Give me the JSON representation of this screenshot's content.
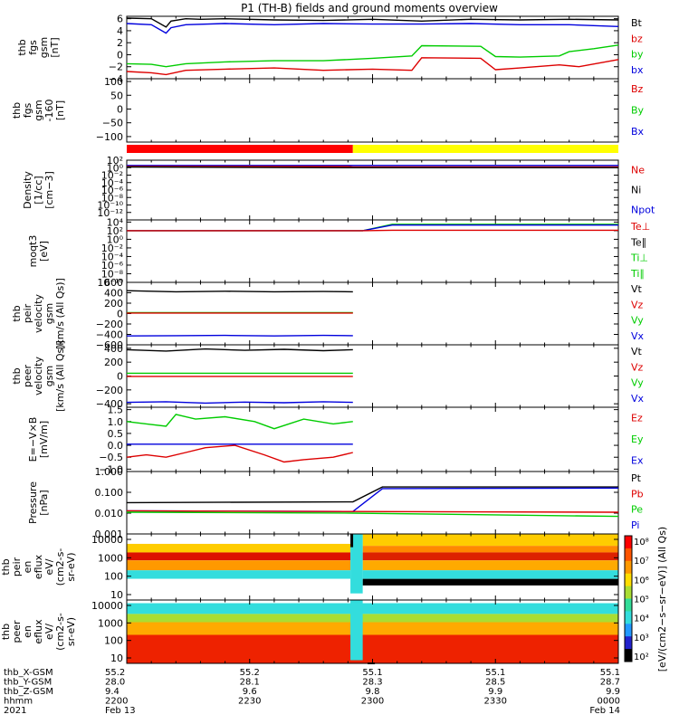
{
  "chart_data": {
    "type": "line",
    "title": "P1 (TH-B) fields and ground moments overview",
    "panels": [
      {
        "id": "fgs",
        "ylabel": [
          "thb",
          "fgs",
          "gsm",
          "[nT]"
        ],
        "ticks": [
          "6",
          "4",
          "2",
          "0",
          "−2",
          "−4"
        ],
        "tick_values": [
          6,
          4,
          2,
          0,
          -2,
          -4
        ],
        "ylim": [
          -4,
          6.4
        ],
        "legend": [
          {
            "name": "Bt",
            "color": "#000000"
          },
          {
            "name": "bz",
            "color": "#dd0000"
          },
          {
            "name": "by",
            "color": "#00cc00"
          },
          {
            "name": "bx",
            "color": "#0000dd"
          }
        ],
        "series": [
          {
            "name": "Bt",
            "color": "#000000",
            "x": [
              0,
              5,
              8,
              9,
              12,
              15,
              20,
              30,
              40,
              50,
              60,
              70,
              80,
              90,
              100
            ],
            "y": [
              6.1,
              6.0,
              4.6,
              5.6,
              6.0,
              5.9,
              6.0,
              5.8,
              5.7,
              5.9,
              5.6,
              5.9,
              5.8,
              5.9,
              5.8
            ]
          },
          {
            "name": "bx",
            "color": "#0000dd",
            "x": [
              0,
              5,
              8,
              9,
              12,
              20,
              30,
              40,
              50,
              60,
              70,
              80,
              90,
              100
            ],
            "y": [
              5.2,
              5.0,
              3.6,
              4.5,
              5.0,
              5.2,
              5.0,
              5.2,
              5.1,
              5.1,
              5.2,
              5.0,
              5.0,
              4.7
            ]
          },
          {
            "name": "by",
            "color": "#00cc00",
            "x": [
              0,
              5,
              8,
              12,
              20,
              30,
              40,
              50,
              58,
              60,
              72,
              75,
              80,
              88,
              90,
              95,
              100
            ],
            "y": [
              -1.5,
              -1.6,
              -2.0,
              -1.5,
              -1.2,
              -1.0,
              -1.0,
              -0.6,
              -0.2,
              1.5,
              1.4,
              -0.3,
              -0.4,
              -0.2,
              0.5,
              1.0,
              1.6
            ]
          },
          {
            "name": "bz",
            "color": "#dd0000",
            "x": [
              0,
              5,
              8,
              12,
              20,
              30,
              40,
              50,
              58,
              60,
              72,
              75,
              80,
              88,
              92,
              100
            ],
            "y": [
              -2.8,
              -3.0,
              -3.3,
              -2.6,
              -2.4,
              -2.2,
              -2.6,
              -2.4,
              -2.6,
              -0.5,
              -0.6,
              -2.5,
              -2.2,
              -1.7,
              -2.0,
              -0.8
            ]
          }
        ]
      },
      {
        "id": "fgs-nominal",
        "ylabel": [
          "thb",
          "fgs",
          "gsm",
          "-160",
          "[nT]"
        ],
        "ticks": [
          "100",
          "50",
          "0",
          "−50",
          "−100"
        ],
        "tick_values": [
          100,
          50,
          0,
          -50,
          -100
        ],
        "ylim": [
          -120,
          110
        ],
        "legend": [
          {
            "name": "Bz",
            "color": "#dd0000"
          },
          {
            "name": "By",
            "color": "#00cc00"
          },
          {
            "name": "Bx",
            "color": "#0000dd"
          }
        ],
        "series": []
      },
      {
        "id": "mode-bar",
        "segments": [
          {
            "from": 0,
            "to": 46,
            "color": "#ff0000"
          },
          {
            "from": 46,
            "to": 100,
            "color": "#ffff00"
          }
        ]
      },
      {
        "id": "density",
        "ylabel": [
          "Density",
          "[1/cc]",
          "[cm−3]"
        ],
        "ticks": [
          "10²",
          "10⁰",
          "10⁻²",
          "10⁻⁴",
          "10⁻⁶",
          "10⁻⁸",
          "10⁻¹⁰",
          "10⁻¹²"
        ],
        "tick_exp": [
          2,
          0,
          -2,
          -4,
          -6,
          -8,
          -10,
          -12
        ],
        "ylim_exp": [
          -14,
          2
        ],
        "legend": [
          {
            "name": "Ne",
            "color": "#dd0000"
          },
          {
            "name": "Ni",
            "color": "#000000"
          },
          {
            "name": "Npot",
            "color": "#0000dd"
          }
        ],
        "series": [
          {
            "name": "Npot",
            "color": "#0000dd",
            "x": [
              0,
              100
            ],
            "y": [
              0.6,
              0.6
            ]
          },
          {
            "name": "Ne",
            "color": "#dd0000",
            "x": [
              0,
              45,
              46,
              100
            ],
            "y": [
              0.3,
              0.3,
              0.2,
              0.2
            ]
          },
          {
            "name": "Ni",
            "color": "#000000",
            "x": [
              0,
              46,
              100
            ],
            "y": [
              0.15,
              0.0,
              0.0
            ]
          }
        ]
      },
      {
        "id": "temperature",
        "ylabel": [
          "moqt3",
          "[eV]"
        ],
        "ticks": [
          "10⁴",
          "10²",
          "10⁰",
          "10⁻²",
          "10⁻⁴",
          "10⁻⁶",
          "10⁻⁸",
          "10⁻¹⁰"
        ],
        "tick_exp": [
          4,
          2,
          0,
          -2,
          -4,
          -6,
          -8,
          -10
        ],
        "ylim_exp": [
          -10,
          4.5
        ],
        "legend": [
          {
            "name": "Te⊥",
            "color": "#dd0000"
          },
          {
            "name": "Te∥",
            "color": "#000000"
          },
          {
            "name": "Ti⊥",
            "color": "#00cc00"
          },
          {
            "name": "Ti∥",
            "color": "#00cc00"
          }
        ],
        "series": [
          {
            "name": "Ti∥",
            "color": "#00cc00",
            "x": [
              0,
              48,
              54,
              100
            ],
            "y": [
              2.0,
              2.0,
              3.5,
              3.5
            ]
          },
          {
            "name": "Te∥",
            "color": "#0000dd",
            "x": [
              0,
              48,
              54,
              100
            ],
            "y": [
              2.0,
              2.0,
              3.3,
              3.3
            ]
          },
          {
            "name": "Te⊥",
            "color": "#dd0000",
            "x": [
              0,
              48,
              54,
              100
            ],
            "y": [
              2.0,
              2.0,
              2.1,
              2.1
            ]
          }
        ]
      },
      {
        "id": "peir-velocity",
        "ylabel": [
          "thb",
          "peir",
          "velocity",
          "gsm",
          "[km/s (All Qs)]"
        ],
        "ticks": [
          "600",
          "400",
          "200",
          "0",
          "−200",
          "−400",
          "−600"
        ],
        "tick_values": [
          600,
          400,
          200,
          0,
          -200,
          -400,
          -600
        ],
        "ylim": [
          -600,
          600
        ],
        "legend": [
          {
            "name": "Vt",
            "color": "#000000"
          },
          {
            "name": "Vz",
            "color": "#dd0000"
          },
          {
            "name": "Vy",
            "color": "#00cc00"
          },
          {
            "name": "Vx",
            "color": "#0000dd"
          }
        ],
        "series": [
          {
            "name": "Vt",
            "color": "#000000",
            "x": [
              0,
              10,
              20,
              30,
              40,
              46
            ],
            "y": [
              440,
              420,
              430,
              420,
              425,
              420
            ]
          },
          {
            "name": "Vy",
            "color": "#00cc00",
            "x": [
              0,
              46
            ],
            "y": [
              20,
              20
            ]
          },
          {
            "name": "Vz",
            "color": "#dd0000",
            "x": [
              0,
              46
            ],
            "y": [
              10,
              10
            ]
          },
          {
            "name": "Vx",
            "color": "#0000dd",
            "x": [
              0,
              10,
              20,
              30,
              40,
              46
            ],
            "y": [
              -430,
              -425,
              -420,
              -430,
              -420,
              -425
            ]
          }
        ]
      },
      {
        "id": "peer-velocity",
        "ylabel": [
          "thb",
          "peer",
          "velocity",
          "gsm",
          "[km/s (All Qs)]"
        ],
        "ticks": [
          "400",
          "200",
          "0",
          "−200",
          "−400"
        ],
        "tick_values": [
          400,
          200,
          0,
          -200,
          -400
        ],
        "ylim": [
          -450,
          450
        ],
        "legend": [
          {
            "name": "Vt",
            "color": "#000000"
          },
          {
            "name": "Vz",
            "color": "#dd0000"
          },
          {
            "name": "Vy",
            "color": "#00cc00"
          },
          {
            "name": "Vx",
            "color": "#0000dd"
          }
        ],
        "series": [
          {
            "name": "Vt",
            "color": "#000000",
            "x": [
              0,
              8,
              16,
              24,
              32,
              40,
              46
            ],
            "y": [
              380,
              360,
              390,
              370,
              385,
              365,
              380
            ]
          },
          {
            "name": "Vy",
            "color": "#00cc00",
            "x": [
              0,
              46
            ],
            "y": [
              40,
              40
            ]
          },
          {
            "name": "Vz",
            "color": "#dd0000",
            "x": [
              0,
              46
            ],
            "y": [
              -5,
              -5
            ]
          },
          {
            "name": "Vx",
            "color": "#0000dd",
            "x": [
              0,
              8,
              16,
              24,
              32,
              40,
              46
            ],
            "y": [
              -380,
              -370,
              -390,
              -375,
              -385,
              -370,
              -380
            ]
          }
        ]
      },
      {
        "id": "efield",
        "ylabel": [
          "E=−V×B",
          "[mV/m]"
        ],
        "ticks": [
          "1.5",
          "1.0",
          "0.5",
          "0.0",
          "−0.5",
          "−1.0"
        ],
        "tick_values": [
          1.5,
          1.0,
          0.5,
          0.0,
          -0.5,
          -1.0
        ],
        "ylim": [
          -1.1,
          1.6
        ],
        "legend": [
          {
            "name": "Ez",
            "color": "#dd0000"
          },
          {
            "name": "Ey",
            "color": "#00cc00"
          },
          {
            "name": "Ex",
            "color": "#0000dd"
          }
        ],
        "series": [
          {
            "name": "Ey",
            "color": "#00cc00",
            "x": [
              0,
              4,
              8,
              10,
              14,
              20,
              26,
              30,
              36,
              42,
              46
            ],
            "y": [
              1.0,
              0.9,
              0.8,
              1.3,
              1.1,
              1.2,
              1.0,
              0.7,
              1.1,
              0.9,
              1.0
            ]
          },
          {
            "name": "Ex",
            "color": "#0000dd",
            "x": [
              0,
              46
            ],
            "y": [
              0.05,
              0.05
            ]
          },
          {
            "name": "Ez",
            "color": "#dd0000",
            "x": [
              0,
              4,
              8,
              12,
              16,
              22,
              28,
              32,
              36,
              42,
              46
            ],
            "y": [
              -0.5,
              -0.4,
              -0.5,
              -0.3,
              -0.1,
              0.0,
              -0.4,
              -0.7,
              -0.6,
              -0.5,
              -0.3
            ]
          }
        ]
      },
      {
        "id": "pressure",
        "ylabel": [
          "Pressure",
          "[nPa]"
        ],
        "ticks": [
          "1.000",
          "0.100",
          "0.010",
          "0.001"
        ],
        "tick_exp": [
          0,
          -1,
          -2,
          -3
        ],
        "ylim_exp": [
          -3,
          0
        ],
        "legend": [
          {
            "name": "Pt",
            "color": "#000000"
          },
          {
            "name": "Pb",
            "color": "#dd0000"
          },
          {
            "name": "Pe",
            "color": "#00cc00"
          },
          {
            "name": "Pi",
            "color": "#0000dd"
          }
        ],
        "series": [
          {
            "name": "Pt",
            "color": "#000000",
            "x": [
              0,
              46,
              52,
              100
            ],
            "y": [
              0.032,
              0.035,
              0.18,
              0.18
            ]
          },
          {
            "name": "Pi",
            "color": "#0000dd",
            "x": [
              0,
              46,
              52,
              100
            ],
            "y": [
              0.013,
              0.012,
              0.15,
              0.16
            ]
          },
          {
            "name": "Pb",
            "color": "#dd0000",
            "x": [
              0,
              46,
              100
            ],
            "y": [
              0.013,
              0.012,
              0.011
            ]
          },
          {
            "name": "Pe",
            "color": "#00cc00",
            "x": [
              0,
              46,
              100
            ],
            "y": [
              0.011,
              0.01,
              0.007
            ]
          }
        ]
      },
      {
        "id": "peir-spectrogram",
        "ylabel": [
          "thb",
          "peir",
          "en",
          "eflux",
          "eV/",
          "(cm2-s-",
          "sr-eV)"
        ],
        "ticks": [
          "10000",
          "1000",
          "100",
          "10"
        ],
        "tick_exp": [
          4,
          3,
          2,
          1
        ]
      },
      {
        "id": "peer-spectrogram",
        "ylabel": [
          "thb",
          "peer",
          "en",
          "eflux",
          "eV/",
          "(cm2-s-",
          "sr-eV)"
        ],
        "ticks": [
          "10000",
          "1000",
          "100",
          "10"
        ],
        "tick_exp": [
          4,
          3,
          2,
          1
        ]
      }
    ],
    "colorbar": {
      "ticks": [
        "10⁸",
        "10⁷",
        "10⁶",
        "10⁵",
        "10⁴",
        "10³",
        "10²"
      ],
      "label": "[eV/(cm2−s−sr−eV)] (All Qs)"
    },
    "xaxis": {
      "row_labels": [
        "thb_X-GSM",
        "thb_Y-GSM",
        "thb_Z-GSM",
        "hhmm",
        "2021"
      ],
      "columns": [
        {
          "x": 0,
          "values": [
            "55.2",
            "28.0",
            "9.4",
            "2200",
            "Feb 13"
          ]
        },
        {
          "x": 25,
          "values": [
            "55.2",
            "28.1",
            "9.6",
            "2230",
            ""
          ]
        },
        {
          "x": 50,
          "values": [
            "55.1",
            "28.3",
            "9.8",
            "2300",
            ""
          ]
        },
        {
          "x": 75,
          "values": [
            "55.1",
            "28.5",
            "9.9",
            "2330",
            ""
          ]
        },
        {
          "x": 100,
          "values": [
            "55.1",
            "28.7",
            "9.9",
            "0000",
            "Feb 14"
          ]
        }
      ]
    }
  }
}
